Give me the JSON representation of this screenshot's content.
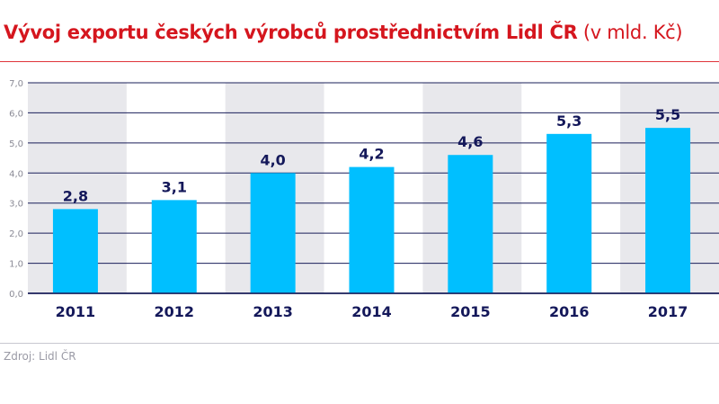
{
  "title": {
    "main": "Vývoj exportu českých výrobců prostřednictvím Lidl ČR",
    "unit": "(v mld. Kč)"
  },
  "source": "Zdroj: Lidl ČR",
  "colors": {
    "title": "#d5161e",
    "bar": "#00bfff",
    "band": "#e8e8ec",
    "grid": "#1a1f5a",
    "label": "#14185a"
  },
  "chart_data": {
    "type": "bar",
    "categories": [
      "2011",
      "2012",
      "2013",
      "2014",
      "2015",
      "2016",
      "2017"
    ],
    "values": [
      2.8,
      3.1,
      4.0,
      4.2,
      4.6,
      5.3,
      5.5
    ],
    "value_labels": [
      "2,8",
      "3,1",
      "4,0",
      "4,2",
      "4,6",
      "5,3",
      "5,5"
    ],
    "yticks": [
      "0,0",
      "1,0",
      "2,0",
      "3,0",
      "4,0",
      "5,0",
      "6,0",
      "7,0"
    ],
    "ylim": [
      0,
      7
    ],
    "grid": true,
    "xlabel": "",
    "ylabel": ""
  }
}
